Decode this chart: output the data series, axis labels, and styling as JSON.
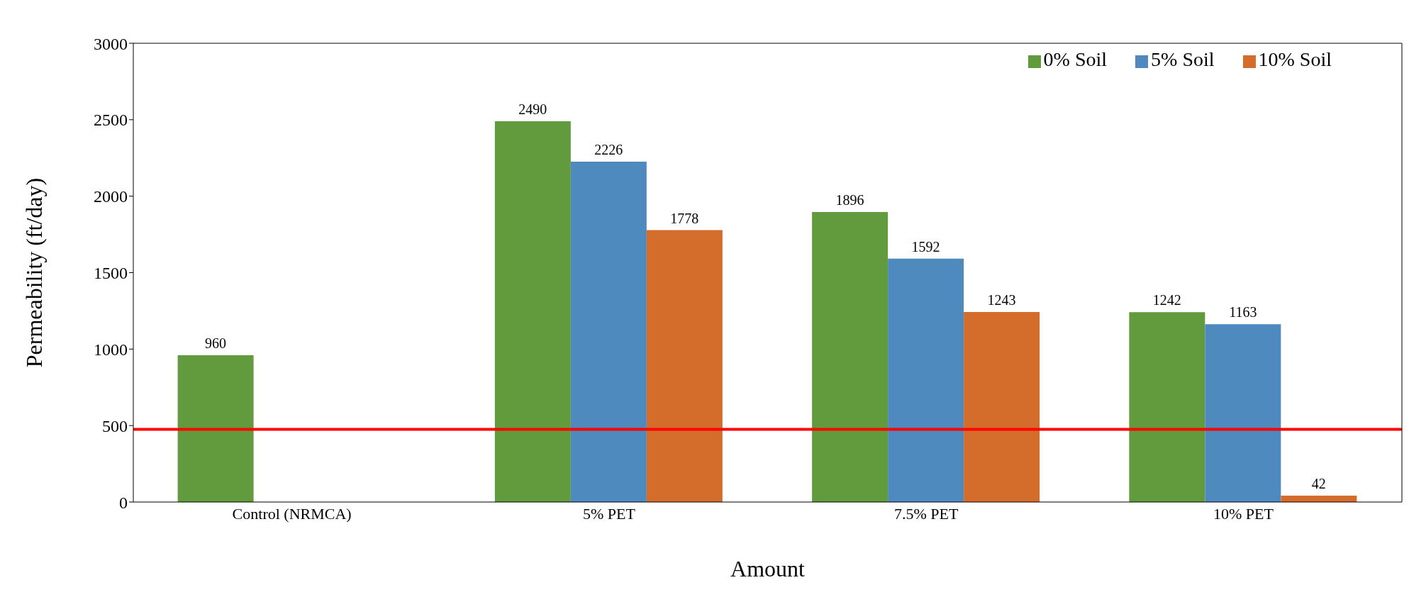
{
  "chart_data": {
    "type": "bar",
    "xlabel": "Amount",
    "ylabel": "Permeability (ft/day)",
    "categories": [
      "Control (NRMCA)",
      "5% PET",
      "7.5% PET",
      "10% PET"
    ],
    "series": [
      {
        "name": "0% Soil",
        "color": "#629b3e",
        "values": [
          960,
          2490,
          1896,
          1242
        ]
      },
      {
        "name": "5% Soil",
        "color": "#4f8abf",
        "values": [
          null,
          2226,
          1592,
          1163
        ]
      },
      {
        "name": "10% Soil",
        "color": "#d46c2b",
        "values": [
          null,
          1778,
          1243,
          42
        ]
      }
    ],
    "ylim": [
      0,
      3000
    ],
    "yticks": [
      0,
      500,
      1000,
      1500,
      2000,
      2500,
      3000
    ],
    "ref_lines": [
      {
        "axis": "y",
        "value": 475,
        "color": "#ff0000"
      }
    ],
    "data_labels": true,
    "grid": false,
    "legend": "top right"
  }
}
